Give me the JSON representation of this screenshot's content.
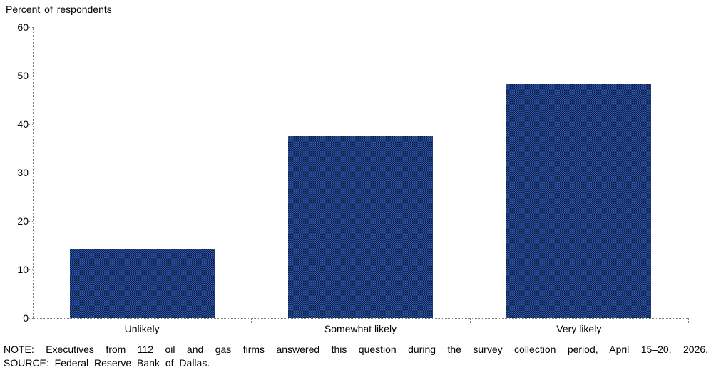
{
  "chart_data": {
    "type": "bar",
    "title": "Percent of respondents",
    "categories": [
      "Unlikely",
      "Somewhat likely",
      "Very likely"
    ],
    "values": [
      14.3,
      37.5,
      48.2
    ],
    "xlabel": "",
    "ylabel": "Percent of respondents",
    "ylim": [
      0,
      60
    ],
    "yticks": [
      0,
      10,
      20,
      30,
      40,
      50,
      60
    ],
    "grid": false,
    "legend": false,
    "bar_fill_average": "#1e4283",
    "bar_pattern_light": "#2e5cc0",
    "bar_pattern_dark": "#0b1930",
    "axis_color": "#7f7f7f"
  },
  "note": "NOTE: Executives from 112 oil and gas firms answered this question during the survey collection period, April 15–20, 2026.",
  "source": "SOURCE: Federal Reserve Bank of Dallas."
}
